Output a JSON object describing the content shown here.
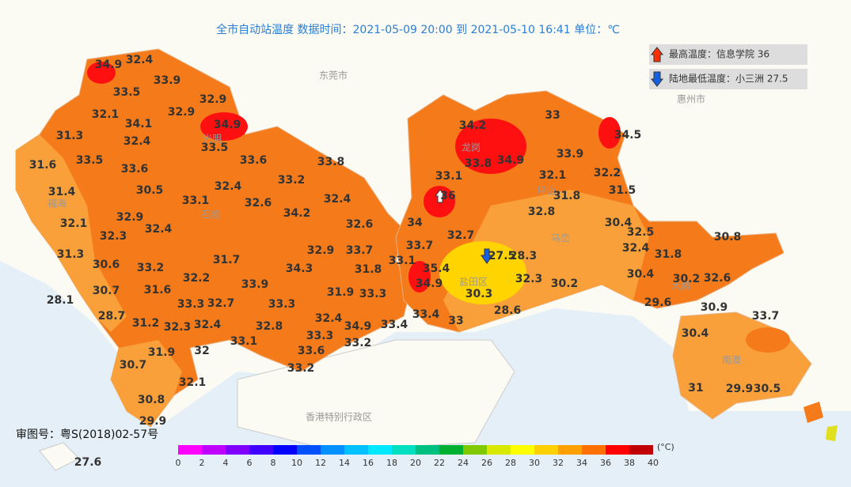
{
  "title": "全市自动站温度  数据时间：2021-05-09 20:00 到 2021-05-10 16:41  单位：℃",
  "legend": {
    "max": "最高温度：信息学院 36",
    "min": "陆地最低温度：小三洲 27.5"
  },
  "places": [
    "东莞市",
    "惠州市",
    "香港特别行政区",
    "光明",
    "龙岗",
    "坪山",
    "盐田区",
    "南澳",
    "福海",
    "石岩",
    "大鹏",
    "马峦"
  ],
  "stations": [
    34.9,
    32.4,
    33.9,
    33.5,
    32.9,
    32.1,
    32.9,
    34.1,
    34.9,
    31.3,
    32.4,
    33.5,
    31.6,
    33.5,
    33.6,
    33.6,
    33.2,
    33.8,
    31.4,
    30.5,
    32.4,
    33.1,
    32.6,
    34.2,
    32.4,
    32.1,
    32.9,
    32.4,
    32.6,
    32.3,
    31.3,
    30.6,
    31.7,
    32.9,
    33.7,
    34.3,
    33.2,
    32.2,
    31.8,
    30.7,
    31.6,
    33.9,
    31.9,
    33.3,
    28.1,
    33.3,
    32.7,
    33.3,
    28.7,
    31.2,
    32.3,
    32.4,
    32.8,
    32.4,
    34.9,
    33.4,
    33.3,
    33.1,
    32,
    33.6,
    33.2,
    31.9,
    30.7,
    33.2,
    32.1,
    30.8,
    29.9,
    27.6,
    34.2,
    33,
    34.5,
    33.8,
    34.9,
    33.9,
    33.1,
    36,
    32.1,
    32.2,
    31.8,
    31.5,
    34,
    32.8,
    30.4,
    32.7,
    33.7,
    32.5,
    30.8,
    33.1,
    35.4,
    27.5,
    28.3,
    32.4,
    31.8,
    34.9,
    32.3,
    30.2,
    30.4,
    30.2,
    32.6,
    30.3,
    29.6,
    30.9,
    33.4,
    28.6,
    33,
    33.7,
    30.4,
    31,
    29.9,
    30.5
  ],
  "approval": "审图号：粤S(2018)02-57号",
  "colorbar": {
    "ticks": [
      0,
      2,
      4,
      6,
      8,
      10,
      12,
      14,
      16,
      18,
      20,
      22,
      24,
      26,
      28,
      30,
      32,
      34,
      36,
      38,
      40
    ],
    "colors": [
      "#ff00ff",
      "#c000ff",
      "#8000ff",
      "#4000ff",
      "#0000ff",
      "#0050ff",
      "#0090ff",
      "#00c0ff",
      "#00e8ff",
      "#00e0c0",
      "#00c080",
      "#00b030",
      "#80c800",
      "#d8e800",
      "#ffff00",
      "#ffd000",
      "#ffa000",
      "#ff7000",
      "#ff0000",
      "#c00000"
    ],
    "unit": "(°C)"
  }
}
